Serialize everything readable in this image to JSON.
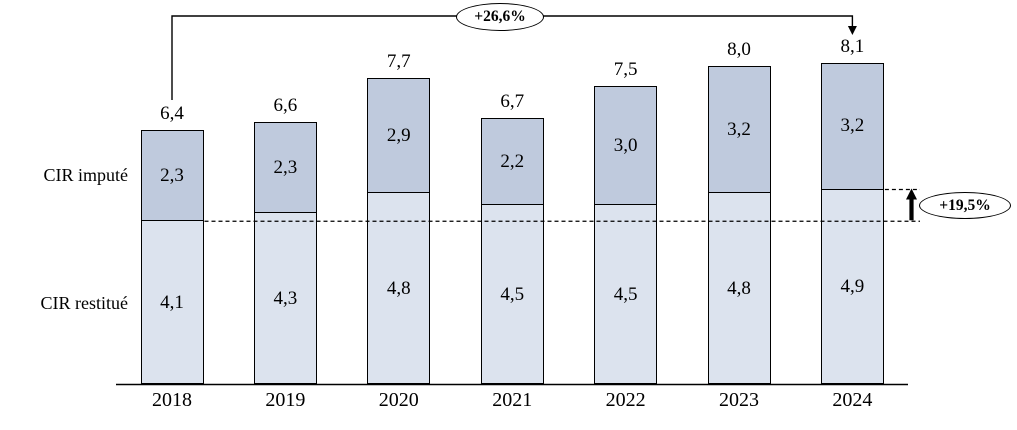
{
  "chart_data": {
    "type": "bar",
    "stacked": true,
    "title": "",
    "categories": [
      "2018",
      "2019",
      "2020",
      "2021",
      "2022",
      "2023",
      "2024"
    ],
    "series": [
      {
        "name": "CIR restitué",
        "values": [
          4.1,
          4.3,
          4.8,
          4.5,
          4.5,
          4.8,
          4.9
        ],
        "color": "#dce3ee"
      },
      {
        "name": "CIR imputé",
        "values": [
          2.3,
          2.3,
          2.9,
          2.2,
          3.0,
          3.2,
          3.2
        ],
        "color": "#bfcadd"
      }
    ],
    "totals": [
      6.4,
      6.6,
      7.7,
      6.7,
      7.5,
      8.0,
      8.1
    ],
    "ylim": [
      0,
      8.5
    ],
    "grid": false,
    "legend_position": "left-inline-labels",
    "decimal_separator": ",",
    "annotations": [
      {
        "id": "total-growth",
        "text": "+26,6%",
        "from": "2018",
        "to": "2024",
        "refers_to": "total"
      },
      {
        "id": "restitue-growth",
        "text": "+19,5%",
        "from": "2018",
        "to": "2024",
        "refers_to": "CIR restitué"
      }
    ],
    "colors": {
      "bar_border": "#000000",
      "line": "#000000",
      "background": "#ffffff"
    }
  }
}
